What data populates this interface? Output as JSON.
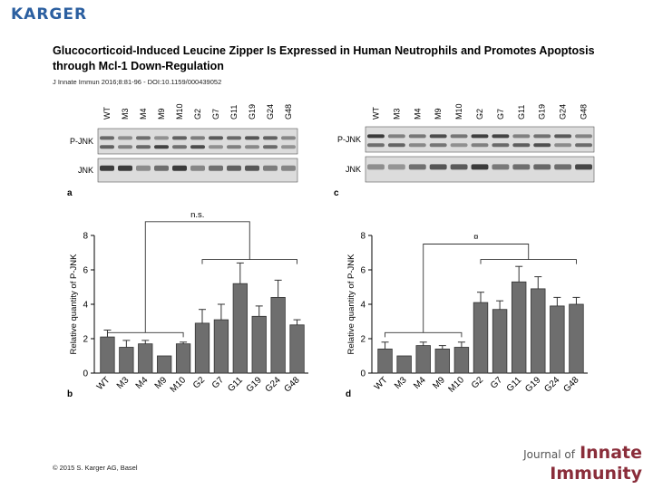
{
  "publisher": "KARGER",
  "title": "Glucocorticoid-Induced Leucine Zipper Is Expressed in Human Neutrophils and Promotes Apoptosis through Mcl-1 Down-Regulation",
  "citation": "J Innate Immun 2016;8:81-96 - DOI:10.1159/000439052",
  "copyright": "© 2015 S. Karger AG, Basel",
  "journal": {
    "line1": "Journal of",
    "line1b": "Innate",
    "line2": "Immunity"
  },
  "blots": [
    {
      "panel": "a",
      "lanes": [
        "WT",
        "M3",
        "M4",
        "M9",
        "M10",
        "G2",
        "G7",
        "G11",
        "G19",
        "G24",
        "G48"
      ],
      "rows": [
        "P-JNK",
        "JNK"
      ]
    },
    {
      "panel": "c",
      "lanes": [
        "WT",
        "M3",
        "M4",
        "M9",
        "M10",
        "G2",
        "G7",
        "G11",
        "G19",
        "G24",
        "G48"
      ],
      "rows": [
        "P-JNK",
        "JNK"
      ]
    }
  ],
  "chart_data": [
    {
      "type": "bar",
      "panel": "b",
      "categories": [
        "WT",
        "M3",
        "M4",
        "M9",
        "M10",
        "G2",
        "G7",
        "G11",
        "G19",
        "G24",
        "G48"
      ],
      "values": [
        2.1,
        1.5,
        1.7,
        1.0,
        1.7,
        2.9,
        3.1,
        5.2,
        3.3,
        4.4,
        2.8
      ],
      "errors": [
        0.4,
        0.4,
        0.2,
        0.0,
        0.1,
        0.8,
        0.9,
        1.2,
        0.6,
        1.0,
        0.3
      ],
      "ylabel": "Relative quantity of P-JNK",
      "ylim": [
        0,
        8
      ],
      "yticks": [
        0,
        2,
        4,
        6,
        8
      ],
      "annotation": "n.s."
    },
    {
      "type": "bar",
      "panel": "d",
      "categories": [
        "WT",
        "M3",
        "M4",
        "M9",
        "M10",
        "G2",
        "G7",
        "G11",
        "G19",
        "G24",
        "G48"
      ],
      "values": [
        1.4,
        1.0,
        1.6,
        1.4,
        1.5,
        4.1,
        3.7,
        5.3,
        4.9,
        3.9,
        4.0
      ],
      "errors": [
        0.4,
        0.0,
        0.2,
        0.2,
        0.3,
        0.6,
        0.5,
        0.9,
        0.7,
        0.5,
        0.4
      ],
      "ylabel": "Relative quantity of P-JNK",
      "ylim": [
        0,
        8
      ],
      "yticks": [
        0,
        2,
        4,
        6,
        8
      ],
      "annotation": "¤"
    }
  ]
}
